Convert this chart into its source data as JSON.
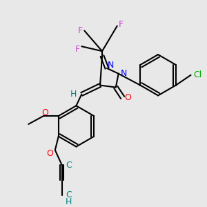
{
  "bg_color": "#e8e8e8",
  "line_color": "#000000",
  "bond_width": 1.5,
  "figsize": [
    3.0,
    3.0
  ],
  "dpi": 100,
  "colors": {
    "F": "#cc44cc",
    "N": "#0000ff",
    "O": "#ff0000",
    "Cl": "#00aa00",
    "C_alkyne": "#008080",
    "H": "#008080"
  }
}
